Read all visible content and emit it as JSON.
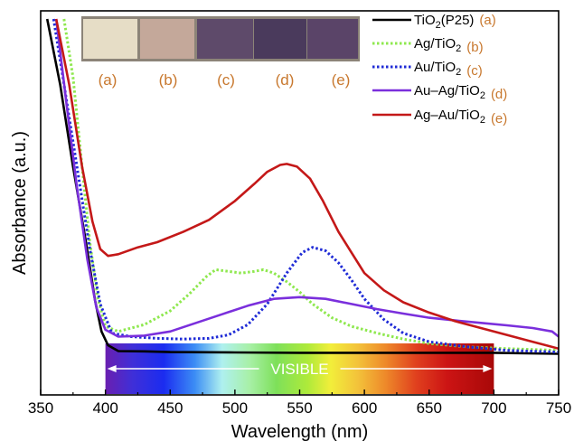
{
  "chart_data": {
    "type": "line",
    "xlabel": "Wavelength (nm)",
    "ylabel": "Absorbance (a.u.)",
    "xlim": [
      350,
      750
    ],
    "xticks": [
      350,
      400,
      450,
      500,
      550,
      600,
      650,
      700,
      750
    ],
    "ylim": [
      0,
      1
    ],
    "y_ticks_labeled": false,
    "grid": false,
    "legend_position": "top-right",
    "colors": {
      "tio2": "#000000",
      "ag": "#8ee84e",
      "au": "#1f2bd6",
      "auag": "#7a2fdc",
      "agau": "#c41818",
      "tag": "#c8782e"
    },
    "series": [
      {
        "key": "tio2",
        "name_main": "TiO",
        "name_sub": "2",
        "name_tail": "(P25)",
        "tag": "(a)",
        "style": "solid",
        "points": [
          [
            355,
            1.05
          ],
          [
            365,
            0.86
          ],
          [
            375,
            0.62
          ],
          [
            385,
            0.4
          ],
          [
            392,
            0.23
          ],
          [
            397,
            0.14
          ],
          [
            402,
            0.1
          ],
          [
            410,
            0.083
          ],
          [
            430,
            0.082
          ],
          [
            450,
            0.08
          ],
          [
            500,
            0.079
          ],
          [
            550,
            0.078
          ],
          [
            600,
            0.078
          ],
          [
            650,
            0.078
          ],
          [
            700,
            0.078
          ],
          [
            750,
            0.075
          ]
        ]
      },
      {
        "key": "ag",
        "name_main": "Ag/TiO",
        "name_sub": "2",
        "name_tail": "",
        "tag": "(b)",
        "style": "dotted",
        "points": [
          [
            368,
            1.05
          ],
          [
            375,
            0.88
          ],
          [
            382,
            0.62
          ],
          [
            388,
            0.4
          ],
          [
            394,
            0.24
          ],
          [
            400,
            0.155
          ],
          [
            410,
            0.14
          ],
          [
            430,
            0.16
          ],
          [
            450,
            0.2
          ],
          [
            465,
            0.25
          ],
          [
            478,
            0.3
          ],
          [
            485,
            0.32
          ],
          [
            495,
            0.315
          ],
          [
            505,
            0.31
          ],
          [
            515,
            0.315
          ],
          [
            522,
            0.32
          ],
          [
            530,
            0.31
          ],
          [
            540,
            0.285
          ],
          [
            550,
            0.255
          ],
          [
            560,
            0.22
          ],
          [
            575,
            0.18
          ],
          [
            590,
            0.155
          ],
          [
            610,
            0.135
          ],
          [
            630,
            0.118
          ],
          [
            650,
            0.105
          ],
          [
            680,
            0.095
          ],
          [
            710,
            0.09
          ],
          [
            750,
            0.085
          ]
        ]
      },
      {
        "key": "au",
        "name_main": "Au/TiO",
        "name_sub": "2",
        "name_tail": "",
        "tag": "(c)",
        "style": "dotted",
        "points": [
          [
            360,
            1.05
          ],
          [
            368,
            0.86
          ],
          [
            378,
            0.62
          ],
          [
            388,
            0.38
          ],
          [
            396,
            0.22
          ],
          [
            405,
            0.135
          ],
          [
            420,
            0.125
          ],
          [
            440,
            0.12
          ],
          [
            460,
            0.118
          ],
          [
            480,
            0.12
          ],
          [
            495,
            0.13
          ],
          [
            510,
            0.16
          ],
          [
            525,
            0.22
          ],
          [
            540,
            0.31
          ],
          [
            552,
            0.37
          ],
          [
            560,
            0.385
          ],
          [
            570,
            0.375
          ],
          [
            580,
            0.34
          ],
          [
            590,
            0.29
          ],
          [
            600,
            0.235
          ],
          [
            615,
            0.175
          ],
          [
            630,
            0.135
          ],
          [
            650,
            0.11
          ],
          [
            680,
            0.095
          ],
          [
            710,
            0.085
          ],
          [
            750,
            0.08
          ]
        ]
      },
      {
        "key": "auag",
        "name_main": "Au–Ag/TiO",
        "name_sub": "2",
        "name_tail": "",
        "tag": "(d)",
        "style": "solid",
        "points": [
          [
            362,
            1.05
          ],
          [
            370,
            0.8
          ],
          [
            378,
            0.56
          ],
          [
            386,
            0.35
          ],
          [
            393,
            0.21
          ],
          [
            400,
            0.145
          ],
          [
            410,
            0.125
          ],
          [
            430,
            0.128
          ],
          [
            450,
            0.14
          ],
          [
            470,
            0.165
          ],
          [
            490,
            0.19
          ],
          [
            510,
            0.215
          ],
          [
            530,
            0.235
          ],
          [
            550,
            0.24
          ],
          [
            570,
            0.235
          ],
          [
            590,
            0.22
          ],
          [
            610,
            0.205
          ],
          [
            630,
            0.192
          ],
          [
            650,
            0.18
          ],
          [
            670,
            0.172
          ],
          [
            690,
            0.165
          ],
          [
            710,
            0.158
          ],
          [
            730,
            0.15
          ],
          [
            745,
            0.14
          ],
          [
            750,
            0.125
          ]
        ]
      },
      {
        "key": "agau",
        "name_main": "Ag–Au/TiO",
        "name_sub": "2",
        "name_tail": "",
        "tag": "(e)",
        "style": "solid",
        "points": [
          [
            362,
            1.05
          ],
          [
            372,
            0.86
          ],
          [
            382,
            0.62
          ],
          [
            390,
            0.46
          ],
          [
            396,
            0.38
          ],
          [
            402,
            0.36
          ],
          [
            410,
            0.365
          ],
          [
            425,
            0.385
          ],
          [
            440,
            0.4
          ],
          [
            460,
            0.43
          ],
          [
            480,
            0.465
          ],
          [
            500,
            0.52
          ],
          [
            515,
            0.57
          ],
          [
            525,
            0.605
          ],
          [
            535,
            0.625
          ],
          [
            540,
            0.628
          ],
          [
            548,
            0.62
          ],
          [
            558,
            0.585
          ],
          [
            568,
            0.52
          ],
          [
            580,
            0.43
          ],
          [
            590,
            0.37
          ],
          [
            600,
            0.31
          ],
          [
            615,
            0.26
          ],
          [
            630,
            0.225
          ],
          [
            650,
            0.195
          ],
          [
            670,
            0.17
          ],
          [
            690,
            0.15
          ],
          [
            710,
            0.13
          ],
          [
            730,
            0.11
          ],
          [
            750,
            0.09
          ]
        ]
      }
    ],
    "visible_band": {
      "label": "VISIBLE",
      "x_start": 400,
      "x_end": 700
    },
    "inset": {
      "labels": [
        "(a)",
        "(b)",
        "(c)",
        "(d)",
        "(e)"
      ],
      "swatch_colors": [
        "#e6ddc6",
        "#c4a89a",
        "#5e4a6a",
        "#4a3a5c",
        "#5a4468"
      ]
    }
  }
}
